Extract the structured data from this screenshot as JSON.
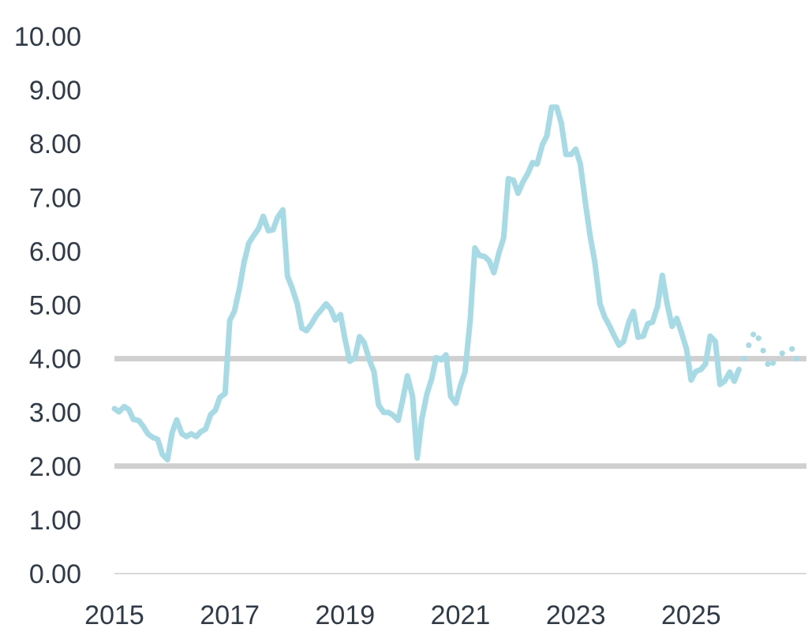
{
  "chart_data": {
    "type": "line",
    "title": "",
    "xlabel": "",
    "ylabel": "",
    "xlim": [
      2015,
      2027
    ],
    "ylim": [
      0,
      10
    ],
    "y_ticks": [
      "0.00",
      "1.00",
      "2.00",
      "3.00",
      "4.00",
      "5.00",
      "6.00",
      "7.00",
      "8.00",
      "9.00",
      "10.00"
    ],
    "x_ticks": [
      "2015",
      "2017",
      "2019",
      "2021",
      "2023",
      "2025"
    ],
    "grid": "none",
    "reference_lines": [
      2.0,
      4.0
    ],
    "colors": {
      "series": "#a6dbe6",
      "reference_lines": "#d0d0d0",
      "axis": "#d9d9d9",
      "text": "#2f3b48"
    },
    "series": [
      {
        "style": "solid",
        "points": [
          [
            2015.0,
            3.07
          ],
          [
            2015.08,
            3.01
          ],
          [
            2015.17,
            3.11
          ],
          [
            2015.25,
            3.05
          ],
          [
            2015.33,
            2.87
          ],
          [
            2015.42,
            2.85
          ],
          [
            2015.5,
            2.74
          ],
          [
            2015.58,
            2.6
          ],
          [
            2015.67,
            2.53
          ],
          [
            2015.75,
            2.5
          ],
          [
            2015.83,
            2.22
          ],
          [
            2015.92,
            2.12
          ],
          [
            2016.0,
            2.62
          ],
          [
            2016.08,
            2.86
          ],
          [
            2016.17,
            2.6
          ],
          [
            2016.25,
            2.55
          ],
          [
            2016.33,
            2.6
          ],
          [
            2016.42,
            2.55
          ],
          [
            2016.5,
            2.64
          ],
          [
            2016.58,
            2.69
          ],
          [
            2016.67,
            2.96
          ],
          [
            2016.75,
            3.04
          ],
          [
            2016.83,
            3.28
          ],
          [
            2016.92,
            3.35
          ],
          [
            2017.0,
            4.71
          ],
          [
            2017.08,
            4.88
          ],
          [
            2017.17,
            5.32
          ],
          [
            2017.25,
            5.8
          ],
          [
            2017.33,
            6.15
          ],
          [
            2017.42,
            6.3
          ],
          [
            2017.5,
            6.42
          ],
          [
            2017.58,
            6.65
          ],
          [
            2017.67,
            6.38
          ],
          [
            2017.75,
            6.4
          ],
          [
            2017.83,
            6.63
          ],
          [
            2017.92,
            6.77
          ],
          [
            2018.0,
            5.54
          ],
          [
            2018.08,
            5.32
          ],
          [
            2018.17,
            5.02
          ],
          [
            2018.25,
            4.57
          ],
          [
            2018.33,
            4.52
          ],
          [
            2018.42,
            4.65
          ],
          [
            2018.5,
            4.8
          ],
          [
            2018.58,
            4.9
          ],
          [
            2018.67,
            5.02
          ],
          [
            2018.75,
            4.92
          ],
          [
            2018.83,
            4.72
          ],
          [
            2018.92,
            4.82
          ],
          [
            2019.0,
            4.36
          ],
          [
            2019.08,
            3.95
          ],
          [
            2019.17,
            4.02
          ],
          [
            2019.25,
            4.41
          ],
          [
            2019.33,
            4.3
          ],
          [
            2019.42,
            3.98
          ],
          [
            2019.5,
            3.76
          ],
          [
            2019.58,
            3.14
          ],
          [
            2019.67,
            3.0
          ],
          [
            2019.75,
            3.0
          ],
          [
            2019.83,
            2.95
          ],
          [
            2019.92,
            2.85
          ],
          [
            2020.0,
            3.24
          ],
          [
            2020.08,
            3.68
          ],
          [
            2020.17,
            3.3
          ],
          [
            2020.25,
            2.15
          ],
          [
            2020.33,
            2.87
          ],
          [
            2020.42,
            3.35
          ],
          [
            2020.5,
            3.62
          ],
          [
            2020.58,
            4.02
          ],
          [
            2020.67,
            3.98
          ],
          [
            2020.75,
            4.07
          ],
          [
            2020.83,
            3.3
          ],
          [
            2020.92,
            3.17
          ],
          [
            2021.0,
            3.5
          ],
          [
            2021.08,
            3.75
          ],
          [
            2021.17,
            4.72
          ],
          [
            2021.25,
            6.06
          ],
          [
            2021.33,
            5.92
          ],
          [
            2021.42,
            5.9
          ],
          [
            2021.5,
            5.82
          ],
          [
            2021.58,
            5.6
          ],
          [
            2021.67,
            5.98
          ],
          [
            2021.75,
            6.25
          ],
          [
            2021.83,
            7.35
          ],
          [
            2021.92,
            7.32
          ],
          [
            2022.0,
            7.08
          ],
          [
            2022.08,
            7.28
          ],
          [
            2022.17,
            7.45
          ],
          [
            2022.25,
            7.65
          ],
          [
            2022.33,
            7.62
          ],
          [
            2022.42,
            7.98
          ],
          [
            2022.5,
            8.15
          ],
          [
            2022.58,
            8.68
          ],
          [
            2022.67,
            8.68
          ],
          [
            2022.75,
            8.38
          ],
          [
            2022.83,
            7.8
          ],
          [
            2022.92,
            7.8
          ],
          [
            2023.0,
            7.9
          ],
          [
            2023.08,
            7.62
          ],
          [
            2023.17,
            6.88
          ],
          [
            2023.25,
            6.28
          ],
          [
            2023.33,
            5.8
          ],
          [
            2023.42,
            5.02
          ],
          [
            2023.5,
            4.78
          ],
          [
            2023.58,
            4.62
          ],
          [
            2023.67,
            4.42
          ],
          [
            2023.75,
            4.25
          ],
          [
            2023.83,
            4.32
          ],
          [
            2023.92,
            4.68
          ],
          [
            2024.0,
            4.88
          ],
          [
            2024.08,
            4.4
          ],
          [
            2024.17,
            4.42
          ],
          [
            2024.25,
            4.65
          ],
          [
            2024.33,
            4.68
          ],
          [
            2024.42,
            4.98
          ],
          [
            2024.5,
            5.55
          ],
          [
            2024.58,
            5.05
          ],
          [
            2024.67,
            4.6
          ],
          [
            2024.75,
            4.75
          ],
          [
            2024.83,
            4.5
          ],
          [
            2024.92,
            4.18
          ],
          [
            2025.0,
            3.6
          ],
          [
            2025.08,
            3.76
          ],
          [
            2025.17,
            3.8
          ],
          [
            2025.25,
            3.9
          ],
          [
            2025.33,
            4.42
          ],
          [
            2025.42,
            4.32
          ],
          [
            2025.5,
            3.52
          ],
          [
            2025.58,
            3.58
          ],
          [
            2025.67,
            3.75
          ],
          [
            2025.75,
            3.58
          ],
          [
            2025.83,
            3.8
          ]
        ]
      },
      {
        "style": "dotted",
        "points": [
          [
            2025.92,
            4.0
          ],
          [
            2026.0,
            4.25
          ],
          [
            2026.08,
            4.45
          ],
          [
            2026.17,
            4.38
          ],
          [
            2026.25,
            4.15
          ],
          [
            2026.33,
            3.9
          ],
          [
            2026.42,
            3.92
          ],
          [
            2026.58,
            4.1
          ],
          [
            2026.75,
            4.18
          ],
          [
            2026.83,
            4.0
          ]
        ]
      }
    ]
  }
}
